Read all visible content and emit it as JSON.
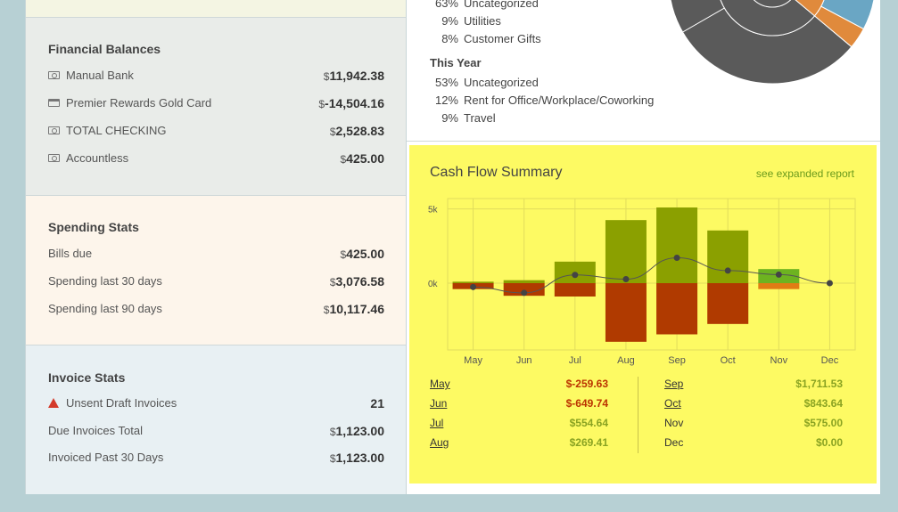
{
  "financial_balances": {
    "title": "Financial Balances",
    "accounts": [
      {
        "icon": "cash-icon",
        "name": "Manual Bank",
        "currency": "$",
        "amount": "11,942.38"
      },
      {
        "icon": "credit-card-icon",
        "name": "Premier Rewards Gold Card",
        "currency": "$",
        "amount": "-14,504.16"
      },
      {
        "icon": "cash-icon",
        "name": "TOTAL CHECKING",
        "currency": "$",
        "amount": "2,528.83"
      },
      {
        "icon": "cash-icon",
        "name": "Accountless",
        "currency": "$",
        "amount": "425.00"
      }
    ]
  },
  "spending_stats": {
    "title": "Spending Stats",
    "rows": [
      {
        "name": "Bills due",
        "currency": "$",
        "amount": "425.00"
      },
      {
        "name": "Spending last 30 days",
        "currency": "$",
        "amount": "3,076.58"
      },
      {
        "name": "Spending last 90 days",
        "currency": "$",
        "amount": "10,117.46"
      }
    ]
  },
  "invoice_stats": {
    "title": "Invoice Stats",
    "rows": [
      {
        "name": "Unsent Draft Invoices",
        "currency": "",
        "amount": "21",
        "icon": "warning-icon"
      },
      {
        "name": "Due Invoices Total",
        "currency": "$",
        "amount": "1,123.00"
      },
      {
        "name": "Invoiced Past 30 Days",
        "currency": "$",
        "amount": "1,123.00"
      }
    ]
  },
  "categories": {
    "this_month": [
      {
        "pct": "63%",
        "name": "Uncategorized"
      },
      {
        "pct": "9%",
        "name": "Utilities"
      },
      {
        "pct": "8%",
        "name": "Customer Gifts"
      }
    ],
    "this_year_label": "This Year",
    "this_year": [
      {
        "pct": "53%",
        "name": "Uncategorized"
      },
      {
        "pct": "12%",
        "name": "Rent for Office/Workplace/Coworking"
      },
      {
        "pct": "9%",
        "name": "Travel"
      }
    ],
    "colors": [
      "#5a5a5a",
      "#e08a3c",
      "#6aa6c4",
      "#b483b6",
      "#7fb57f",
      "#d9d9d9"
    ]
  },
  "cash_flow": {
    "title": "Cash Flow Summary",
    "expanded_link": "see expanded report",
    "months_table": [
      {
        "month": "May",
        "value": "$-259.63",
        "linked": true,
        "sign": "neg"
      },
      {
        "month": "Jun",
        "value": "$-649.74",
        "linked": true,
        "sign": "neg"
      },
      {
        "month": "Jul",
        "value": "$554.64",
        "linked": true,
        "sign": "pos"
      },
      {
        "month": "Aug",
        "value": "$269.41",
        "linked": true,
        "sign": "pos"
      },
      {
        "month": "Sep",
        "value": "$1,711.53",
        "linked": true,
        "sign": "pos"
      },
      {
        "month": "Oct",
        "value": "$843.64",
        "linked": true,
        "sign": "pos"
      },
      {
        "month": "Nov",
        "value": "$575.00",
        "linked": false,
        "sign": "pos"
      },
      {
        "month": "Dec",
        "value": "$0.00",
        "linked": false,
        "sign": "pos"
      }
    ]
  },
  "chart_data": {
    "type": "bar",
    "categories": [
      "May",
      "Jun",
      "Jul",
      "Aug",
      "Sep",
      "Oct",
      "Nov",
      "Dec"
    ],
    "series": [
      {
        "values": [
          100,
          200,
          1450,
          4250,
          5100,
          3550,
          950,
          0
        ]
      },
      {
        "values": [
          -400,
          -850,
          -900,
          -3950,
          -3450,
          -2750,
          -400,
          0
        ]
      },
      {
        "values": [
          -260,
          -650,
          555,
          269,
          1712,
          844,
          575,
          0
        ]
      }
    ],
    "yticks": [
      "5k",
      "0k"
    ],
    "ylim": [
      -4500,
      5700
    ],
    "colors": {
      "income": "#8ba000",
      "expense": "#b03a00",
      "nov_income": "#6db320",
      "nov_expense": "#e07c14",
      "line": "#555555",
      "grid": "#e1dc5c"
    }
  }
}
